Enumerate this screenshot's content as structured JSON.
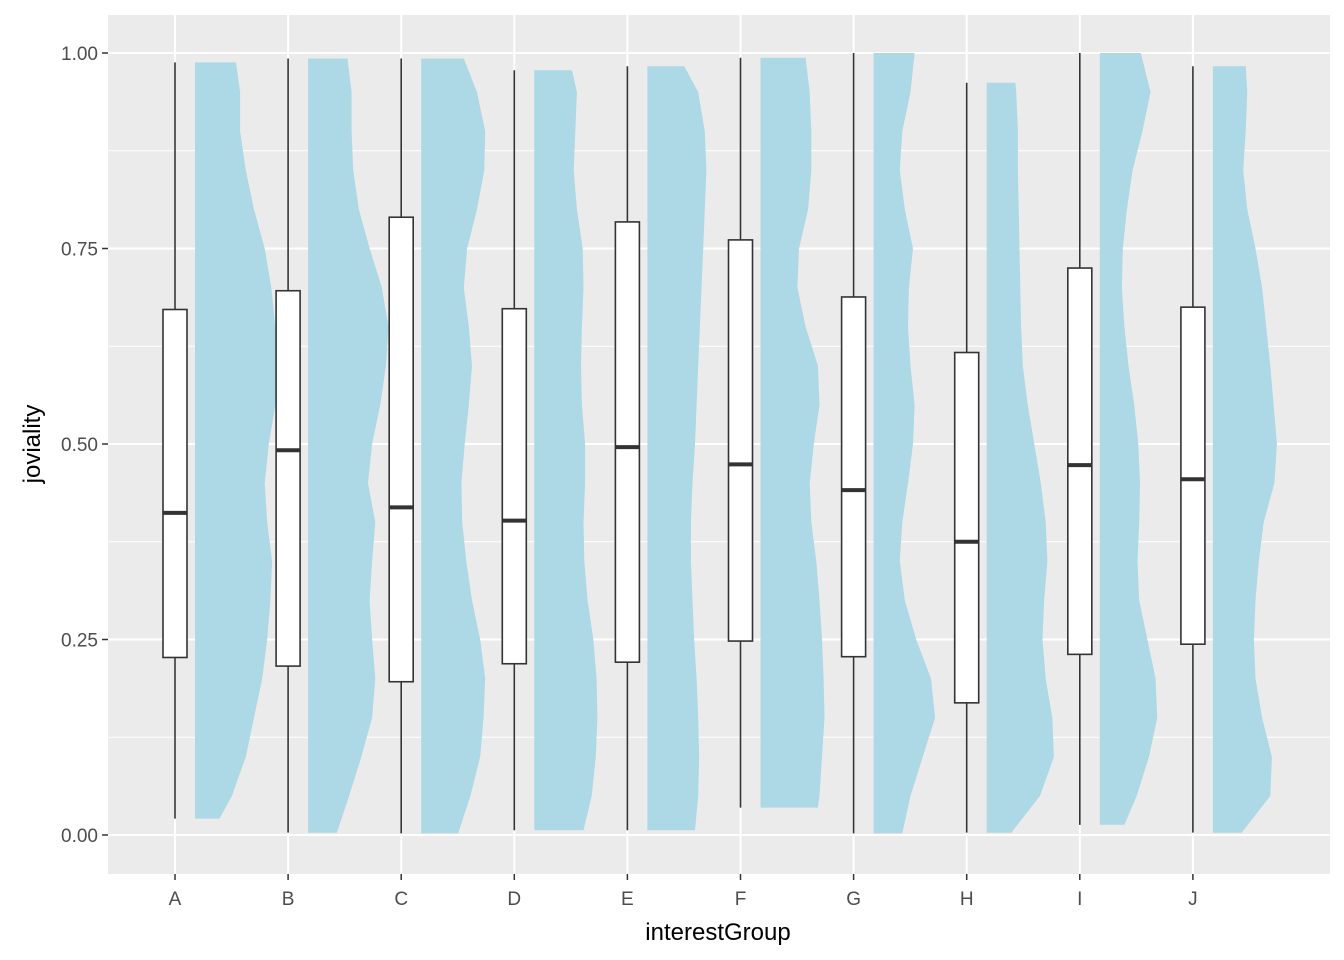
{
  "chart_data": {
    "type": "boxplot",
    "subtype": "raincloud (half-violin + boxplot)",
    "xlabel": "interestGroup",
    "ylabel": "joviality",
    "categories": [
      "A",
      "B",
      "C",
      "D",
      "E",
      "F",
      "G",
      "H",
      "I",
      "J"
    ],
    "ylim": [
      -0.05,
      1.05
    ],
    "y_ticks": [
      0.0,
      0.25,
      0.5,
      0.75,
      1.0
    ],
    "y_tick_labels": [
      "0.00",
      "0.25",
      "0.50",
      "0.75",
      "1.00"
    ],
    "grid": true,
    "legend": "none",
    "colors": {
      "panel_background": "#ebebeb",
      "grid": "#ffffff",
      "violin_fill": "#add8e6",
      "box_fill": "#ffffff",
      "box_line": "#333333"
    },
    "boxes": [
      {
        "category": "A",
        "min": 0.021,
        "q1": 0.227,
        "median": 0.412,
        "q3": 0.672,
        "max": 0.988
      },
      {
        "category": "B",
        "min": 0.003,
        "q1": 0.216,
        "median": 0.492,
        "q3": 0.696,
        "max": 0.993
      },
      {
        "category": "C",
        "min": 0.002,
        "q1": 0.196,
        "median": 0.419,
        "q3": 0.79,
        "max": 0.993
      },
      {
        "category": "D",
        "min": 0.006,
        "q1": 0.219,
        "median": 0.402,
        "q3": 0.673,
        "max": 0.978
      },
      {
        "category": "E",
        "min": 0.006,
        "q1": 0.221,
        "median": 0.496,
        "q3": 0.784,
        "max": 0.983
      },
      {
        "category": "F",
        "min": 0.035,
        "q1": 0.248,
        "median": 0.474,
        "q3": 0.761,
        "max": 0.994
      },
      {
        "category": "G",
        "min": 0.002,
        "q1": 0.228,
        "median": 0.441,
        "q3": 0.688,
        "max": 1.0
      },
      {
        "category": "H",
        "min": 0.003,
        "q1": 0.169,
        "median": 0.375,
        "q3": 0.617,
        "max": 0.962
      },
      {
        "category": "I",
        "min": 0.013,
        "q1": 0.231,
        "median": 0.473,
        "q3": 0.725,
        "max": 1.0
      },
      {
        "category": "J",
        "min": 0.003,
        "q1": 0.244,
        "median": 0.455,
        "q3": 0.675,
        "max": 0.983
      }
    ],
    "violins": [
      {
        "category": "A",
        "profile": [
          [
            0.021,
            0.3
          ],
          [
            0.05,
            0.45
          ],
          [
            0.1,
            0.62
          ],
          [
            0.15,
            0.72
          ],
          [
            0.2,
            0.82
          ],
          [
            0.25,
            0.88
          ],
          [
            0.3,
            0.92
          ],
          [
            0.35,
            0.94
          ],
          [
            0.4,
            0.88
          ],
          [
            0.45,
            0.85
          ],
          [
            0.5,
            0.9
          ],
          [
            0.55,
            0.98
          ],
          [
            0.6,
            1.0
          ],
          [
            0.65,
            0.98
          ],
          [
            0.7,
            0.93
          ],
          [
            0.75,
            0.85
          ],
          [
            0.8,
            0.72
          ],
          [
            0.85,
            0.62
          ],
          [
            0.9,
            0.55
          ],
          [
            0.95,
            0.55
          ],
          [
            0.988,
            0.5
          ]
        ]
      },
      {
        "category": "B",
        "profile": [
          [
            0.003,
            0.35
          ],
          [
            0.05,
            0.5
          ],
          [
            0.1,
            0.65
          ],
          [
            0.15,
            0.78
          ],
          [
            0.2,
            0.82
          ],
          [
            0.25,
            0.78
          ],
          [
            0.3,
            0.75
          ],
          [
            0.35,
            0.78
          ],
          [
            0.4,
            0.82
          ],
          [
            0.45,
            0.73
          ],
          [
            0.5,
            0.78
          ],
          [
            0.55,
            0.88
          ],
          [
            0.6,
            0.95
          ],
          [
            0.65,
            0.98
          ],
          [
            0.7,
            0.9
          ],
          [
            0.75,
            0.75
          ],
          [
            0.8,
            0.62
          ],
          [
            0.85,
            0.55
          ],
          [
            0.9,
            0.53
          ],
          [
            0.95,
            0.53
          ],
          [
            0.993,
            0.48
          ]
        ]
      },
      {
        "category": "C",
        "profile": [
          [
            0.002,
            0.45
          ],
          [
            0.05,
            0.6
          ],
          [
            0.1,
            0.72
          ],
          [
            0.15,
            0.76
          ],
          [
            0.2,
            0.78
          ],
          [
            0.25,
            0.72
          ],
          [
            0.3,
            0.62
          ],
          [
            0.35,
            0.55
          ],
          [
            0.4,
            0.5
          ],
          [
            0.45,
            0.49
          ],
          [
            0.5,
            0.53
          ],
          [
            0.55,
            0.58
          ],
          [
            0.6,
            0.62
          ],
          [
            0.65,
            0.58
          ],
          [
            0.7,
            0.52
          ],
          [
            0.75,
            0.56
          ],
          [
            0.8,
            0.68
          ],
          [
            0.85,
            0.77
          ],
          [
            0.9,
            0.78
          ],
          [
            0.95,
            0.68
          ],
          [
            0.993,
            0.52
          ]
        ]
      },
      {
        "category": "D",
        "profile": [
          [
            0.006,
            0.6
          ],
          [
            0.05,
            0.7
          ],
          [
            0.1,
            0.75
          ],
          [
            0.15,
            0.77
          ],
          [
            0.2,
            0.76
          ],
          [
            0.25,
            0.72
          ],
          [
            0.3,
            0.65
          ],
          [
            0.35,
            0.61
          ],
          [
            0.4,
            0.6
          ],
          [
            0.45,
            0.62
          ],
          [
            0.5,
            0.62
          ],
          [
            0.55,
            0.58
          ],
          [
            0.6,
            0.57
          ],
          [
            0.65,
            0.58
          ],
          [
            0.7,
            0.6
          ],
          [
            0.75,
            0.59
          ],
          [
            0.8,
            0.52
          ],
          [
            0.85,
            0.48
          ],
          [
            0.9,
            0.5
          ],
          [
            0.95,
            0.52
          ],
          [
            0.978,
            0.46
          ]
        ]
      },
      {
        "category": "E",
        "profile": [
          [
            0.006,
            0.58
          ],
          [
            0.05,
            0.62
          ],
          [
            0.1,
            0.63
          ],
          [
            0.15,
            0.62
          ],
          [
            0.2,
            0.6
          ],
          [
            0.25,
            0.57
          ],
          [
            0.3,
            0.55
          ],
          [
            0.35,
            0.53
          ],
          [
            0.4,
            0.53
          ],
          [
            0.45,
            0.55
          ],
          [
            0.5,
            0.58
          ],
          [
            0.55,
            0.6
          ],
          [
            0.6,
            0.62
          ],
          [
            0.65,
            0.64
          ],
          [
            0.7,
            0.66
          ],
          [
            0.75,
            0.68
          ],
          [
            0.8,
            0.7
          ],
          [
            0.85,
            0.72
          ],
          [
            0.9,
            0.7
          ],
          [
            0.95,
            0.62
          ],
          [
            0.983,
            0.45
          ]
        ]
      },
      {
        "category": "F",
        "profile": [
          [
            0.035,
            0.7
          ],
          [
            0.05,
            0.72
          ],
          [
            0.1,
            0.75
          ],
          [
            0.15,
            0.78
          ],
          [
            0.2,
            0.77
          ],
          [
            0.25,
            0.75
          ],
          [
            0.3,
            0.72
          ],
          [
            0.35,
            0.68
          ],
          [
            0.4,
            0.62
          ],
          [
            0.45,
            0.6
          ],
          [
            0.5,
            0.65
          ],
          [
            0.55,
            0.72
          ],
          [
            0.6,
            0.7
          ],
          [
            0.65,
            0.55
          ],
          [
            0.7,
            0.45
          ],
          [
            0.75,
            0.47
          ],
          [
            0.8,
            0.58
          ],
          [
            0.85,
            0.62
          ],
          [
            0.9,
            0.62
          ],
          [
            0.95,
            0.6
          ],
          [
            0.994,
            0.55
          ]
        ]
      },
      {
        "category": "G",
        "profile": [
          [
            0.002,
            0.35
          ],
          [
            0.05,
            0.45
          ],
          [
            0.1,
            0.6
          ],
          [
            0.15,
            0.75
          ],
          [
            0.2,
            0.7
          ],
          [
            0.25,
            0.52
          ],
          [
            0.3,
            0.38
          ],
          [
            0.35,
            0.32
          ],
          [
            0.4,
            0.35
          ],
          [
            0.45,
            0.42
          ],
          [
            0.5,
            0.48
          ],
          [
            0.55,
            0.5
          ],
          [
            0.6,
            0.45
          ],
          [
            0.65,
            0.42
          ],
          [
            0.7,
            0.43
          ],
          [
            0.75,
            0.48
          ],
          [
            0.8,
            0.38
          ],
          [
            0.85,
            0.32
          ],
          [
            0.9,
            0.35
          ],
          [
            0.95,
            0.45
          ],
          [
            1.0,
            0.5
          ]
        ]
      },
      {
        "category": "H",
        "profile": [
          [
            0.003,
            0.3
          ],
          [
            0.05,
            0.65
          ],
          [
            0.1,
            0.82
          ],
          [
            0.15,
            0.8
          ],
          [
            0.2,
            0.72
          ],
          [
            0.25,
            0.68
          ],
          [
            0.3,
            0.7
          ],
          [
            0.35,
            0.74
          ],
          [
            0.4,
            0.72
          ],
          [
            0.45,
            0.66
          ],
          [
            0.5,
            0.58
          ],
          [
            0.55,
            0.5
          ],
          [
            0.6,
            0.44
          ],
          [
            0.65,
            0.42
          ],
          [
            0.7,
            0.41
          ],
          [
            0.75,
            0.4
          ],
          [
            0.8,
            0.39
          ],
          [
            0.85,
            0.38
          ],
          [
            0.9,
            0.38
          ],
          [
            0.95,
            0.36
          ],
          [
            0.962,
            0.35
          ]
        ]
      },
      {
        "category": "I",
        "profile": [
          [
            0.013,
            0.3
          ],
          [
            0.05,
            0.45
          ],
          [
            0.1,
            0.6
          ],
          [
            0.15,
            0.7
          ],
          [
            0.2,
            0.68
          ],
          [
            0.25,
            0.58
          ],
          [
            0.3,
            0.48
          ],
          [
            0.35,
            0.46
          ],
          [
            0.4,
            0.48
          ],
          [
            0.45,
            0.49
          ],
          [
            0.5,
            0.47
          ],
          [
            0.55,
            0.42
          ],
          [
            0.6,
            0.35
          ],
          [
            0.65,
            0.3
          ],
          [
            0.7,
            0.27
          ],
          [
            0.75,
            0.28
          ],
          [
            0.8,
            0.33
          ],
          [
            0.85,
            0.4
          ],
          [
            0.9,
            0.52
          ],
          [
            0.95,
            0.62
          ],
          [
            1.0,
            0.5
          ]
        ]
      },
      {
        "category": "J",
        "profile": [
          [
            0.003,
            0.35
          ],
          [
            0.05,
            0.7
          ],
          [
            0.1,
            0.72
          ],
          [
            0.15,
            0.6
          ],
          [
            0.2,
            0.52
          ],
          [
            0.25,
            0.5
          ],
          [
            0.3,
            0.52
          ],
          [
            0.35,
            0.56
          ],
          [
            0.4,
            0.62
          ],
          [
            0.45,
            0.75
          ],
          [
            0.5,
            0.78
          ],
          [
            0.55,
            0.74
          ],
          [
            0.6,
            0.7
          ],
          [
            0.65,
            0.65
          ],
          [
            0.7,
            0.6
          ],
          [
            0.75,
            0.52
          ],
          [
            0.8,
            0.42
          ],
          [
            0.85,
            0.37
          ],
          [
            0.9,
            0.4
          ],
          [
            0.95,
            0.42
          ],
          [
            0.983,
            0.4
          ]
        ]
      }
    ]
  }
}
